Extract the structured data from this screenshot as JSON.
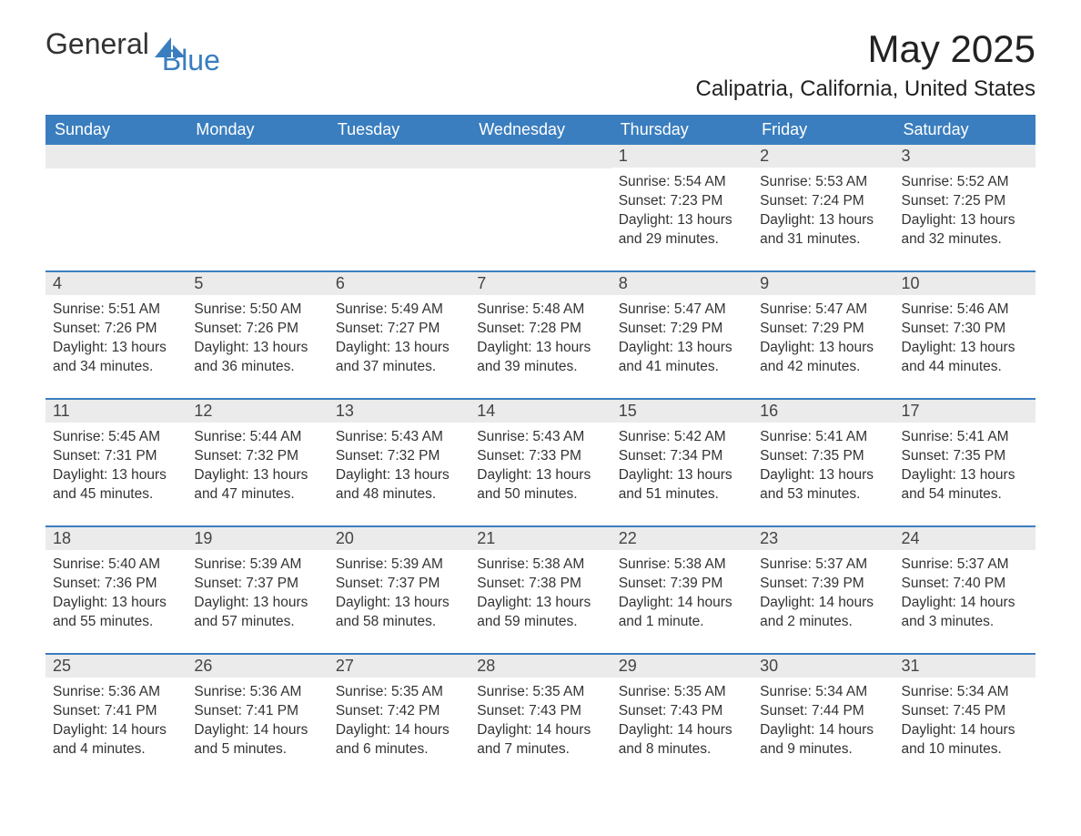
{
  "brand": {
    "text_general": "General",
    "text_blue": "Blue",
    "accent_color": "#3a7ebf"
  },
  "header": {
    "month_title": "May 2025",
    "location": "Calipatria, California, United States"
  },
  "calendar": {
    "type": "calendar-table",
    "background_color": "#ffffff",
    "header_bg": "#3a7ebf",
    "header_text_color": "#ffffff",
    "daynum_bg": "#ebebeb",
    "row_divider_color": "#3a7ebf",
    "body_text_color": "#333333",
    "body_fontsize": 15.5,
    "weekday_fontsize": 18,
    "weekdays": [
      "Sunday",
      "Monday",
      "Tuesday",
      "Wednesday",
      "Thursday",
      "Friday",
      "Saturday"
    ],
    "weeks": [
      [
        {
          "empty": true
        },
        {
          "empty": true
        },
        {
          "empty": true
        },
        {
          "empty": true
        },
        {
          "day": "1",
          "sunrise": "Sunrise: 5:54 AM",
          "sunset": "Sunset: 7:23 PM",
          "daylight": "Daylight: 13 hours and 29 minutes."
        },
        {
          "day": "2",
          "sunrise": "Sunrise: 5:53 AM",
          "sunset": "Sunset: 7:24 PM",
          "daylight": "Daylight: 13 hours and 31 minutes."
        },
        {
          "day": "3",
          "sunrise": "Sunrise: 5:52 AM",
          "sunset": "Sunset: 7:25 PM",
          "daylight": "Daylight: 13 hours and 32 minutes."
        }
      ],
      [
        {
          "day": "4",
          "sunrise": "Sunrise: 5:51 AM",
          "sunset": "Sunset: 7:26 PM",
          "daylight": "Daylight: 13 hours and 34 minutes."
        },
        {
          "day": "5",
          "sunrise": "Sunrise: 5:50 AM",
          "sunset": "Sunset: 7:26 PM",
          "daylight": "Daylight: 13 hours and 36 minutes."
        },
        {
          "day": "6",
          "sunrise": "Sunrise: 5:49 AM",
          "sunset": "Sunset: 7:27 PM",
          "daylight": "Daylight: 13 hours and 37 minutes."
        },
        {
          "day": "7",
          "sunrise": "Sunrise: 5:48 AM",
          "sunset": "Sunset: 7:28 PM",
          "daylight": "Daylight: 13 hours and 39 minutes."
        },
        {
          "day": "8",
          "sunrise": "Sunrise: 5:47 AM",
          "sunset": "Sunset: 7:29 PM",
          "daylight": "Daylight: 13 hours and 41 minutes."
        },
        {
          "day": "9",
          "sunrise": "Sunrise: 5:47 AM",
          "sunset": "Sunset: 7:29 PM",
          "daylight": "Daylight: 13 hours and 42 minutes."
        },
        {
          "day": "10",
          "sunrise": "Sunrise: 5:46 AM",
          "sunset": "Sunset: 7:30 PM",
          "daylight": "Daylight: 13 hours and 44 minutes."
        }
      ],
      [
        {
          "day": "11",
          "sunrise": "Sunrise: 5:45 AM",
          "sunset": "Sunset: 7:31 PM",
          "daylight": "Daylight: 13 hours and 45 minutes."
        },
        {
          "day": "12",
          "sunrise": "Sunrise: 5:44 AM",
          "sunset": "Sunset: 7:32 PM",
          "daylight": "Daylight: 13 hours and 47 minutes."
        },
        {
          "day": "13",
          "sunrise": "Sunrise: 5:43 AM",
          "sunset": "Sunset: 7:32 PM",
          "daylight": "Daylight: 13 hours and 48 minutes."
        },
        {
          "day": "14",
          "sunrise": "Sunrise: 5:43 AM",
          "sunset": "Sunset: 7:33 PM",
          "daylight": "Daylight: 13 hours and 50 minutes."
        },
        {
          "day": "15",
          "sunrise": "Sunrise: 5:42 AM",
          "sunset": "Sunset: 7:34 PM",
          "daylight": "Daylight: 13 hours and 51 minutes."
        },
        {
          "day": "16",
          "sunrise": "Sunrise: 5:41 AM",
          "sunset": "Sunset: 7:35 PM",
          "daylight": "Daylight: 13 hours and 53 minutes."
        },
        {
          "day": "17",
          "sunrise": "Sunrise: 5:41 AM",
          "sunset": "Sunset: 7:35 PM",
          "daylight": "Daylight: 13 hours and 54 minutes."
        }
      ],
      [
        {
          "day": "18",
          "sunrise": "Sunrise: 5:40 AM",
          "sunset": "Sunset: 7:36 PM",
          "daylight": "Daylight: 13 hours and 55 minutes."
        },
        {
          "day": "19",
          "sunrise": "Sunrise: 5:39 AM",
          "sunset": "Sunset: 7:37 PM",
          "daylight": "Daylight: 13 hours and 57 minutes."
        },
        {
          "day": "20",
          "sunrise": "Sunrise: 5:39 AM",
          "sunset": "Sunset: 7:37 PM",
          "daylight": "Daylight: 13 hours and 58 minutes."
        },
        {
          "day": "21",
          "sunrise": "Sunrise: 5:38 AM",
          "sunset": "Sunset: 7:38 PM",
          "daylight": "Daylight: 13 hours and 59 minutes."
        },
        {
          "day": "22",
          "sunrise": "Sunrise: 5:38 AM",
          "sunset": "Sunset: 7:39 PM",
          "daylight": "Daylight: 14 hours and 1 minute."
        },
        {
          "day": "23",
          "sunrise": "Sunrise: 5:37 AM",
          "sunset": "Sunset: 7:39 PM",
          "daylight": "Daylight: 14 hours and 2 minutes."
        },
        {
          "day": "24",
          "sunrise": "Sunrise: 5:37 AM",
          "sunset": "Sunset: 7:40 PM",
          "daylight": "Daylight: 14 hours and 3 minutes."
        }
      ],
      [
        {
          "day": "25",
          "sunrise": "Sunrise: 5:36 AM",
          "sunset": "Sunset: 7:41 PM",
          "daylight": "Daylight: 14 hours and 4 minutes."
        },
        {
          "day": "26",
          "sunrise": "Sunrise: 5:36 AM",
          "sunset": "Sunset: 7:41 PM",
          "daylight": "Daylight: 14 hours and 5 minutes."
        },
        {
          "day": "27",
          "sunrise": "Sunrise: 5:35 AM",
          "sunset": "Sunset: 7:42 PM",
          "daylight": "Daylight: 14 hours and 6 minutes."
        },
        {
          "day": "28",
          "sunrise": "Sunrise: 5:35 AM",
          "sunset": "Sunset: 7:43 PM",
          "daylight": "Daylight: 14 hours and 7 minutes."
        },
        {
          "day": "29",
          "sunrise": "Sunrise: 5:35 AM",
          "sunset": "Sunset: 7:43 PM",
          "daylight": "Daylight: 14 hours and 8 minutes."
        },
        {
          "day": "30",
          "sunrise": "Sunrise: 5:34 AM",
          "sunset": "Sunset: 7:44 PM",
          "daylight": "Daylight: 14 hours and 9 minutes."
        },
        {
          "day": "31",
          "sunrise": "Sunrise: 5:34 AM",
          "sunset": "Sunset: 7:45 PM",
          "daylight": "Daylight: 14 hours and 10 minutes."
        }
      ]
    ]
  }
}
